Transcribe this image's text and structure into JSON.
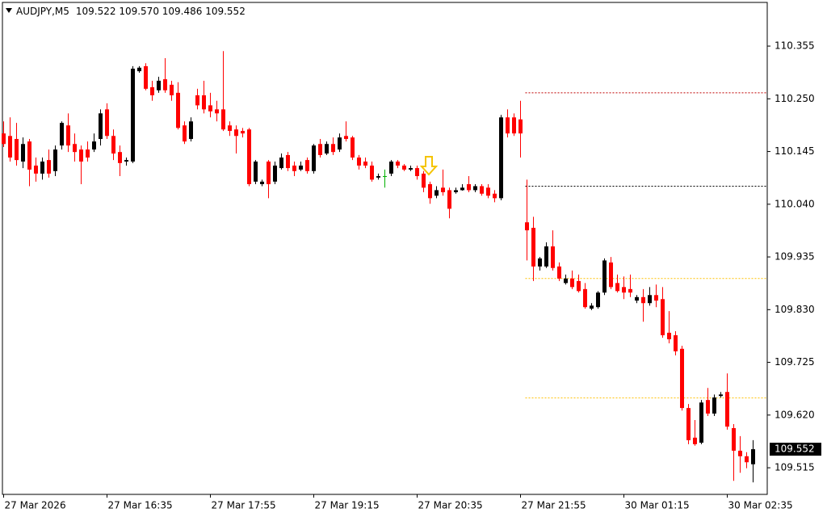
{
  "header": {
    "symbol": "AUDJPY,M5",
    "ohlc": "109.522 109.570 109.486 109.552"
  },
  "chart_data": {
    "type": "candlestick",
    "categories": [
      "27 Mar 2026",
      null,
      null,
      null,
      null,
      null,
      null,
      null,
      null,
      null,
      null,
      null,
      null,
      null,
      null,
      null,
      "27 Mar 16:35",
      null,
      null,
      null,
      null,
      null,
      null,
      null,
      null,
      null,
      null,
      null,
      null,
      null,
      null,
      null,
      "27 Mar 17:55",
      null,
      null,
      null,
      null,
      null,
      null,
      null,
      null,
      null,
      null,
      null,
      null,
      null,
      null,
      null,
      "27 Mar 19:15",
      null,
      null,
      null,
      null,
      null,
      null,
      null,
      null,
      null,
      null,
      null,
      null,
      null,
      null,
      null,
      "27 Mar 20:35",
      null,
      null,
      null,
      null,
      null,
      null,
      null,
      null,
      null,
      null,
      null,
      null,
      null,
      null,
      null,
      "27 Mar 21:55",
      null,
      null,
      null,
      null,
      null,
      null,
      null,
      null,
      null,
      null,
      null,
      null,
      null,
      null,
      null,
      "30 Mar 01:15",
      null,
      null,
      null,
      null,
      null,
      null,
      null,
      null,
      null,
      null,
      null,
      null,
      null,
      null,
      null,
      "30 Mar 02:35",
      null,
      null,
      null,
      null
    ],
    "ohlc": [
      [
        110.181,
        110.205,
        110.154,
        110.16
      ],
      [
        110.176,
        110.213,
        110.125,
        110.133
      ],
      [
        110.17,
        110.202,
        110.117,
        110.128
      ],
      [
        110.125,
        110.173,
        110.112,
        110.16
      ],
      [
        110.165,
        110.17,
        110.076,
        110.109
      ],
      [
        110.117,
        110.133,
        110.085,
        110.101
      ],
      [
        110.101,
        110.133,
        110.089,
        110.125
      ],
      [
        110.128,
        110.149,
        110.093,
        110.101
      ],
      [
        110.106,
        110.157,
        110.096,
        110.149
      ],
      [
        110.157,
        110.205,
        110.149,
        110.202
      ],
      [
        110.197,
        110.221,
        110.144,
        110.157
      ],
      [
        110.16,
        110.181,
        110.125,
        110.144
      ],
      [
        110.149,
        110.157,
        110.08,
        110.125
      ],
      [
        110.149,
        110.165,
        110.125,
        110.133
      ],
      [
        110.149,
        110.181,
        110.144,
        110.165
      ],
      [
        110.17,
        110.229,
        110.157,
        110.221
      ],
      [
        110.229,
        110.241,
        110.17,
        110.176
      ],
      [
        110.176,
        110.189,
        110.128,
        110.141
      ],
      [
        110.144,
        110.157,
        110.096,
        110.122
      ],
      [
        110.125,
        110.133,
        110.117,
        110.128
      ],
      [
        110.125,
        110.315,
        110.122,
        110.31
      ],
      [
        110.305,
        110.315,
        110.302,
        110.312
      ],
      [
        110.315,
        110.321,
        110.267,
        110.27
      ],
      [
        110.273,
        110.286,
        110.246,
        110.257
      ],
      [
        110.267,
        110.294,
        110.262,
        110.286
      ],
      [
        110.289,
        110.331,
        110.262,
        110.267
      ],
      [
        110.278,
        110.286,
        110.246,
        110.257
      ],
      [
        110.262,
        110.283,
        110.189,
        110.192
      ],
      [
        110.197,
        110.205,
        110.16,
        110.165
      ],
      [
        110.17,
        110.213,
        110.165,
        110.205
      ],
      [
        110.257,
        110.27,
        110.229,
        110.237
      ],
      [
        110.257,
        110.286,
        110.221,
        110.229
      ],
      [
        110.237,
        110.262,
        110.213,
        110.225
      ],
      [
        110.229,
        110.246,
        110.205,
        110.221
      ],
      [
        110.229,
        110.345,
        110.186,
        110.189
      ],
      [
        110.197,
        110.205,
        110.176,
        110.186
      ],
      [
        110.189,
        110.197,
        110.141,
        110.176
      ],
      [
        110.186,
        110.192,
        110.173,
        110.181
      ],
      [
        110.189,
        110.192,
        110.076,
        110.08
      ],
      [
        110.085,
        110.128,
        110.08,
        110.125
      ],
      [
        110.08,
        110.089,
        110.076,
        110.085
      ],
      [
        110.125,
        110.128,
        110.052,
        110.08
      ],
      [
        110.085,
        110.125,
        110.08,
        110.117
      ],
      [
        110.112,
        110.141,
        110.109,
        110.133
      ],
      [
        110.138,
        110.144,
        110.106,
        110.112
      ],
      [
        110.117,
        110.125,
        110.096,
        110.106
      ],
      [
        110.109,
        110.125,
        110.106,
        110.117
      ],
      [
        110.128,
        110.133,
        110.101,
        110.106
      ],
      [
        110.106,
        110.16,
        110.101,
        110.157
      ],
      [
        110.16,
        110.17,
        110.133,
        110.138
      ],
      [
        110.141,
        110.165,
        110.138,
        110.16
      ],
      [
        110.16,
        110.173,
        110.138,
        110.144
      ],
      [
        110.149,
        110.181,
        110.144,
        110.173
      ],
      [
        110.176,
        110.205,
        110.165,
        110.17
      ],
      [
        110.173,
        110.176,
        110.128,
        110.133
      ],
      [
        110.133,
        110.138,
        110.109,
        110.117
      ],
      [
        110.125,
        110.133,
        110.112,
        110.117
      ],
      [
        110.117,
        110.125,
        110.085,
        110.089
      ],
      [
        110.093,
        110.101,
        110.089,
        110.096
      ],
      [
        110.096,
        110.109,
        110.073,
        110.096
      ],
      [
        110.101,
        110.128,
        110.096,
        110.125
      ],
      [
        110.125,
        110.128,
        110.112,
        110.117
      ],
      [
        110.117,
        110.12,
        110.106,
        110.109
      ],
      [
        110.109,
        110.117,
        110.106,
        110.112
      ],
      [
        110.112,
        110.117,
        110.089,
        110.096
      ],
      [
        110.101,
        110.106,
        110.064,
        110.073
      ],
      [
        110.08,
        110.085,
        110.041,
        110.052
      ],
      [
        110.057,
        110.076,
        110.052,
        110.068
      ],
      [
        110.073,
        110.109,
        110.057,
        110.064
      ],
      [
        110.068,
        110.073,
        110.012,
        110.031
      ],
      [
        110.064,
        110.073,
        110.061,
        110.068
      ],
      [
        110.068,
        110.08,
        110.067,
        110.073
      ],
      [
        110.08,
        110.096,
        110.064,
        110.068
      ],
      [
        110.068,
        110.08,
        110.064,
        110.076
      ],
      [
        110.076,
        110.08,
        110.057,
        110.061
      ],
      [
        110.073,
        110.08,
        110.052,
        110.057
      ],
      [
        110.061,
        110.068,
        110.044,
        110.052
      ],
      [
        110.052,
        110.218,
        110.048,
        110.213
      ],
      [
        110.213,
        110.229,
        110.173,
        110.181
      ],
      [
        110.213,
        110.221,
        110.176,
        110.181
      ],
      [
        110.209,
        110.246,
        110.133,
        110.181
      ],
      [
        110.004,
        110.089,
        109.928,
        109.988
      ],
      [
        109.993,
        110.015,
        109.887,
        109.916
      ],
      [
        109.916,
        109.935,
        109.908,
        109.932
      ],
      [
        109.916,
        109.964,
        109.913,
        109.956
      ],
      [
        109.956,
        109.988,
        109.908,
        109.913
      ],
      [
        109.916,
        109.924,
        109.887,
        109.892
      ],
      [
        109.883,
        109.9,
        109.88,
        109.892
      ],
      [
        109.892,
        109.908,
        109.871,
        109.875
      ],
      [
        109.887,
        109.9,
        109.864,
        109.867
      ],
      [
        109.871,
        109.883,
        109.832,
        109.835
      ],
      [
        109.832,
        109.843,
        109.829,
        109.838
      ],
      [
        109.835,
        109.867,
        109.832,
        109.864
      ],
      [
        109.864,
        109.932,
        109.859,
        109.928
      ],
      [
        109.924,
        109.935,
        109.871,
        109.875
      ],
      [
        109.883,
        109.9,
        109.864,
        109.867
      ],
      [
        109.875,
        109.896,
        109.851,
        109.864
      ],
      [
        109.871,
        109.9,
        109.855,
        109.864
      ],
      [
        109.848,
        109.859,
        109.843,
        109.855
      ],
      [
        109.855,
        109.871,
        109.806,
        109.843
      ],
      [
        109.843,
        109.875,
        109.838,
        109.859
      ],
      [
        109.859,
        109.88,
        109.835,
        109.848
      ],
      [
        109.851,
        109.875,
        109.774,
        109.779
      ],
      [
        109.784,
        109.827,
        109.763,
        109.771
      ],
      [
        109.779,
        109.787,
        109.739,
        109.747
      ],
      [
        109.752,
        109.758,
        109.629,
        109.634
      ],
      [
        109.634,
        109.642,
        109.562,
        109.57
      ],
      [
        109.575,
        109.61,
        109.559,
        109.562
      ],
      [
        109.565,
        109.65,
        109.562,
        109.645
      ],
      [
        109.65,
        109.674,
        109.618,
        109.623
      ],
      [
        109.623,
        109.661,
        109.618,
        109.655
      ],
      [
        109.658,
        109.666,
        109.655,
        109.661
      ],
      [
        109.666,
        109.703,
        109.591,
        109.597
      ],
      [
        109.594,
        109.602,
        109.489,
        109.549
      ],
      [
        109.549,
        109.578,
        109.505,
        109.538
      ],
      [
        109.538,
        109.546,
        109.514,
        109.526
      ],
      [
        109.522,
        109.57,
        109.486,
        109.552
      ]
    ],
    "up_color": "#000000",
    "down_color": "#ff0000",
    "doji_color": "#00b000",
    "ylim": [
      109.462,
      110.442
    ],
    "yticks": [
      {
        "value": 110.355,
        "label": "110.355"
      },
      {
        "value": 110.25,
        "label": "110.250"
      },
      {
        "value": 110.145,
        "label": "110.145"
      },
      {
        "value": 110.04,
        "label": "110.040"
      },
      {
        "value": 109.935,
        "label": "109.935"
      },
      {
        "value": 109.83,
        "label": "109.830"
      },
      {
        "value": 109.725,
        "label": "109.725"
      },
      {
        "value": 109.62,
        "label": "109.620"
      },
      {
        "value": 109.515,
        "label": "109.515"
      }
    ],
    "last_price": 109.552,
    "levels": [
      {
        "value": 110.262,
        "color": "#c00000",
        "start": 81
      },
      {
        "value": 110.076,
        "color": "#000000",
        "start": 81
      },
      {
        "value": 109.892,
        "color": "#ffc000",
        "start": 81
      },
      {
        "value": 109.654,
        "color": "#ffc000",
        "start": 81
      }
    ]
  }
}
